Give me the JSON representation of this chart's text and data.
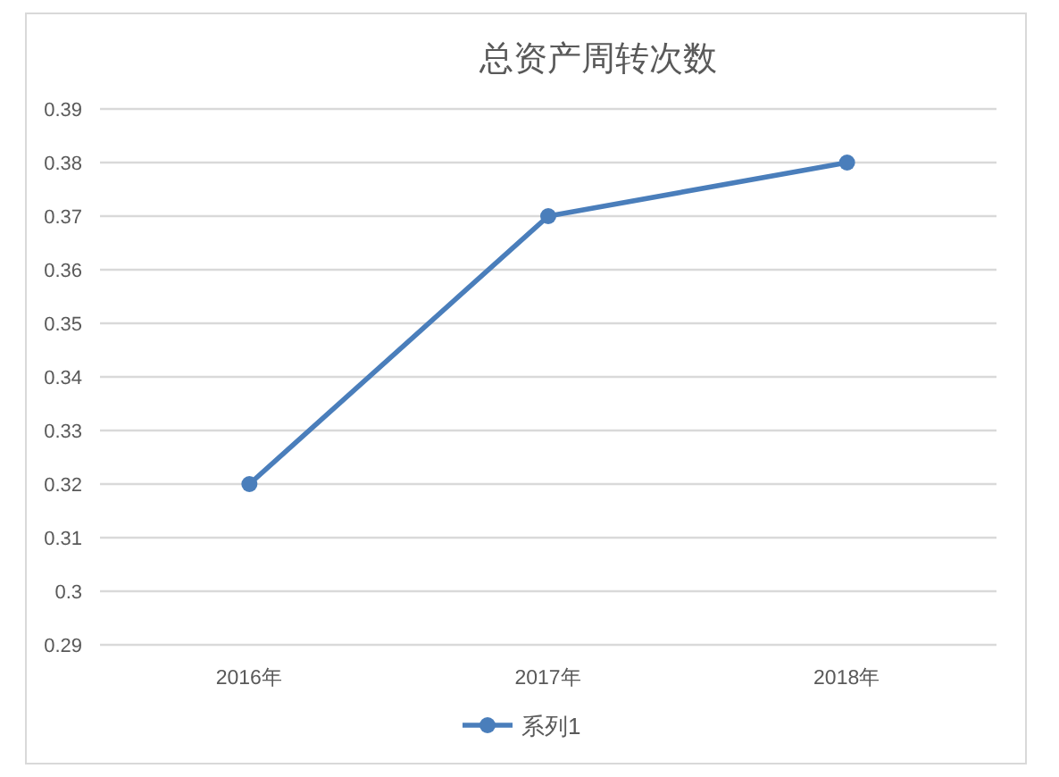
{
  "chart_data": {
    "type": "line",
    "title": "总资产周转次数",
    "categories": [
      "2016年",
      "2017年",
      "2018年"
    ],
    "series": [
      {
        "name": "系列1",
        "color": "#4a7ebb",
        "values": [
          0.32,
          0.37,
          0.38
        ]
      }
    ],
    "ylim": [
      0.29,
      0.39
    ],
    "yticks": [
      0.29,
      0.3,
      0.31,
      0.32,
      0.33,
      0.34,
      0.35,
      0.36,
      0.37,
      0.38,
      0.39
    ],
    "grid": "y",
    "legend": "bottom",
    "marker": "circle",
    "line_style": "solid"
  }
}
